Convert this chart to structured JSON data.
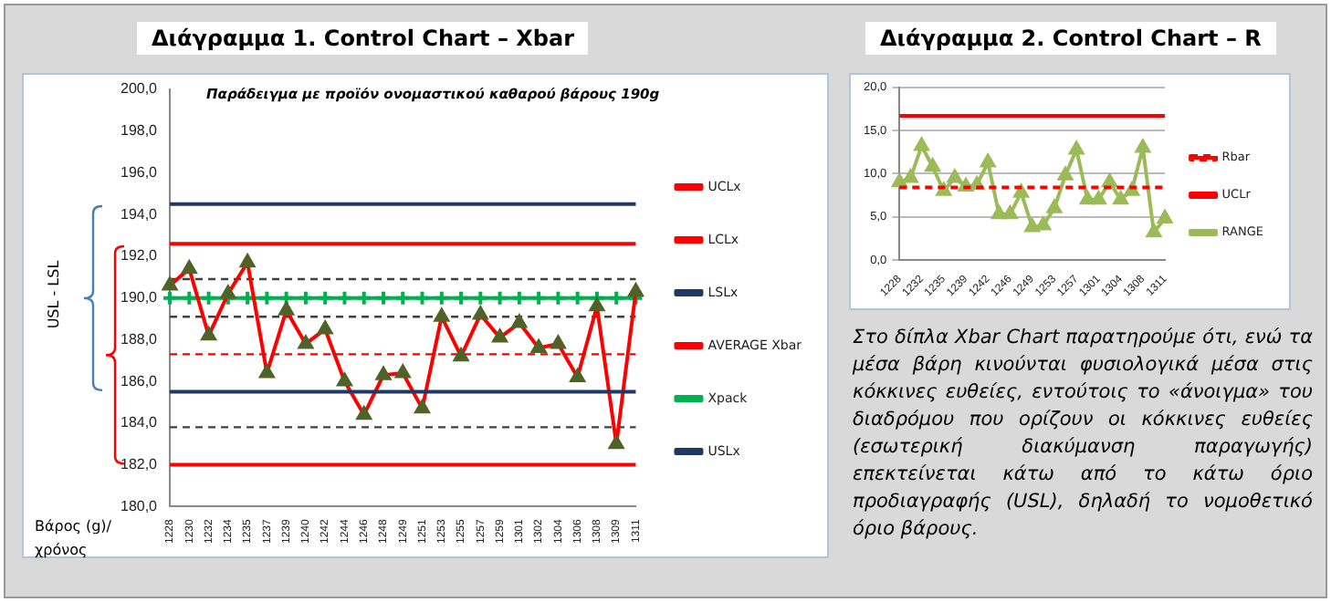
{
  "chart_data": [
    {
      "type": "line",
      "title": "Διάγραμμα 1. Control Chart – Xbar",
      "subtitle": "Παράδειγμα με προϊόν ονομαστικού καθαρού βάρους 190g",
      "xlabel": "Βάρος (g)/ χρόνος",
      "ylabel": "USL - LSL",
      "categories": [
        "1228",
        "1230",
        "1232",
        "1234",
        "1235",
        "1237",
        "1239",
        "1240",
        "1242",
        "1244",
        "1246",
        "1248",
        "1249",
        "1251",
        "1253",
        "1255",
        "1257",
        "1259",
        "1301",
        "1302",
        "1304",
        "1306",
        "1308",
        "1309",
        "1311"
      ],
      "series": [
        {
          "name": "UCLx",
          "color": "#ff0000",
          "values": [
            192.6,
            192.6,
            192.6,
            192.6,
            192.6,
            192.6,
            192.6,
            192.6,
            192.6,
            192.6,
            192.6,
            192.6,
            192.6,
            192.6,
            192.6,
            192.6,
            192.6,
            192.6,
            192.6,
            192.6,
            192.6,
            192.6,
            192.6,
            192.6,
            192.6
          ]
        },
        {
          "name": "LCLx",
          "color": "#ff0000",
          "values": [
            182.0,
            182.0,
            182.0,
            182.0,
            182.0,
            182.0,
            182.0,
            182.0,
            182.0,
            182.0,
            182.0,
            182.0,
            182.0,
            182.0,
            182.0,
            182.0,
            182.0,
            182.0,
            182.0,
            182.0,
            182.0,
            182.0,
            182.0,
            182.0,
            182.0
          ]
        },
        {
          "name": "LSLx",
          "color": "#1f3864",
          "values": [
            185.5,
            185.5,
            185.5,
            185.5,
            185.5,
            185.5,
            185.5,
            185.5,
            185.5,
            185.5,
            185.5,
            185.5,
            185.5,
            185.5,
            185.5,
            185.5,
            185.5,
            185.5,
            185.5,
            185.5,
            185.5,
            185.5,
            185.5,
            185.5,
            185.5
          ]
        },
        {
          "name": "AVERAGE Xbar",
          "color": "#ff0000",
          "marker": "triangle",
          "values": [
            190.6,
            191.4,
            188.2,
            190.2,
            191.7,
            186.4,
            189.4,
            187.8,
            188.5,
            186.0,
            184.4,
            186.3,
            186.4,
            184.7,
            189.1,
            187.2,
            189.2,
            188.1,
            188.8,
            187.6,
            187.8,
            186.2,
            189.6,
            183.0,
            190.3
          ]
        },
        {
          "name": "Xpack",
          "color": "#00b050",
          "marker": "cross",
          "values": [
            190,
            190,
            190,
            190,
            190,
            190,
            190,
            190,
            190,
            190,
            190,
            190,
            190,
            190,
            190,
            190,
            190,
            190,
            190,
            190,
            190,
            190,
            190,
            190,
            190
          ]
        },
        {
          "name": "USLx",
          "color": "#1f3864",
          "values": [
            194.5,
            194.5,
            194.5,
            194.5,
            194.5,
            194.5,
            194.5,
            194.5,
            194.5,
            194.5,
            194.5,
            194.5,
            194.5,
            194.5,
            194.5,
            194.5,
            194.5,
            194.5,
            194.5,
            194.5,
            194.5,
            194.5,
            194.5,
            194.5,
            194.5
          ]
        }
      ],
      "ref_lines": [
        {
          "axis": "y",
          "value": 187.3,
          "color": "#ff0000",
          "line_style": "dashed"
        },
        {
          "axis": "y",
          "value": 190.9,
          "color": "#404040",
          "line_style": "dashed"
        },
        {
          "axis": "y",
          "value": 189.1,
          "color": "#404040",
          "line_style": "dashed"
        },
        {
          "axis": "y",
          "value": 183.8,
          "color": "#404040",
          "line_style": "dashed"
        }
      ],
      "ylim": [
        180,
        200
      ],
      "yticks": [
        {
          "value": 180,
          "label": "180,0"
        },
        {
          "value": 182,
          "label": "182,0"
        },
        {
          "value": 184,
          "label": "184,0"
        },
        {
          "value": 186,
          "label": "186,0"
        },
        {
          "value": 188,
          "label": "188,0"
        },
        {
          "value": 190,
          "label": "190,0"
        },
        {
          "value": 192,
          "label": "192,0"
        },
        {
          "value": 194,
          "label": "194,0"
        },
        {
          "value": 196,
          "label": "196,0"
        },
        {
          "value": 198,
          "label": "198,0"
        },
        {
          "value": 200,
          "label": "200,0"
        }
      ],
      "grid": false,
      "legend": "right"
    },
    {
      "type": "line",
      "title": "Διάγραμμα 2. Control Chart – R",
      "categories": [
        "1228",
        null,
        "1232",
        null,
        "1235",
        null,
        "1239",
        null,
        "1242",
        null,
        "1246",
        null,
        "1249",
        null,
        "1253",
        null,
        "1257",
        null,
        "1301",
        null,
        "1304",
        null,
        "1308",
        null,
        "1311"
      ],
      "series": [
        {
          "name": "Rbar",
          "color": "#ff0000",
          "line_style": "dashed",
          "values": [
            8.4,
            8.4,
            8.4,
            8.4,
            8.4,
            8.4,
            8.4,
            8.4,
            8.4,
            8.4,
            8.4,
            8.4,
            8.4,
            8.4,
            8.4,
            8.4,
            8.4,
            8.4,
            8.4,
            8.4,
            8.4,
            8.4,
            8.4,
            8.4,
            8.4
          ]
        },
        {
          "name": "UCLr",
          "color": "#ff0000",
          "values": [
            16.7,
            16.7,
            16.7,
            16.7,
            16.7,
            16.7,
            16.7,
            16.7,
            16.7,
            16.7,
            16.7,
            16.7,
            16.7,
            16.7,
            16.7,
            16.7,
            16.7,
            16.7,
            16.7,
            16.7,
            16.7,
            16.7,
            16.7,
            16.7,
            16.7
          ]
        },
        {
          "name": "RANGE",
          "color": "#9bbb59",
          "marker": "triangle",
          "values": [
            9.0,
            9.5,
            13.2,
            10.8,
            8.0,
            9.5,
            8.5,
            8.7,
            11.3,
            5.3,
            5.3,
            7.8,
            3.8,
            4.0,
            6.0,
            9.8,
            12.8,
            7.0,
            7.0,
            9.0,
            7.0,
            8.0,
            13.0,
            3.2,
            4.8
          ]
        }
      ],
      "ylim": [
        0,
        20
      ],
      "yticks": [
        {
          "value": 0,
          "label": "0,0"
        },
        {
          "value": 5,
          "label": "5,0"
        },
        {
          "value": 10,
          "label": "10,0"
        },
        {
          "value": 15,
          "label": "15,0"
        },
        {
          "value": 20,
          "label": "20,0"
        }
      ],
      "grid": "y",
      "legend": "right",
      "annotations": [
        "Στο δίπλα Xbar Chart παρατηρούμε ότι, ενώ τα μέσα βάρη κινούνται φυσιολογικά μέσα στις κόκκινες ευθείες, εντούτοις το «άνοιγμα» του διαδρόμου που ορίζουν οι κόκκινες ευθείες (εσωτερική διακύμανση παραγωγής) επεκτείνεται κάτω από το κάτω όριο προδιαγραφής (USL), δηλαδή το νομοθετικό όριο βάρους."
      ]
    }
  ]
}
